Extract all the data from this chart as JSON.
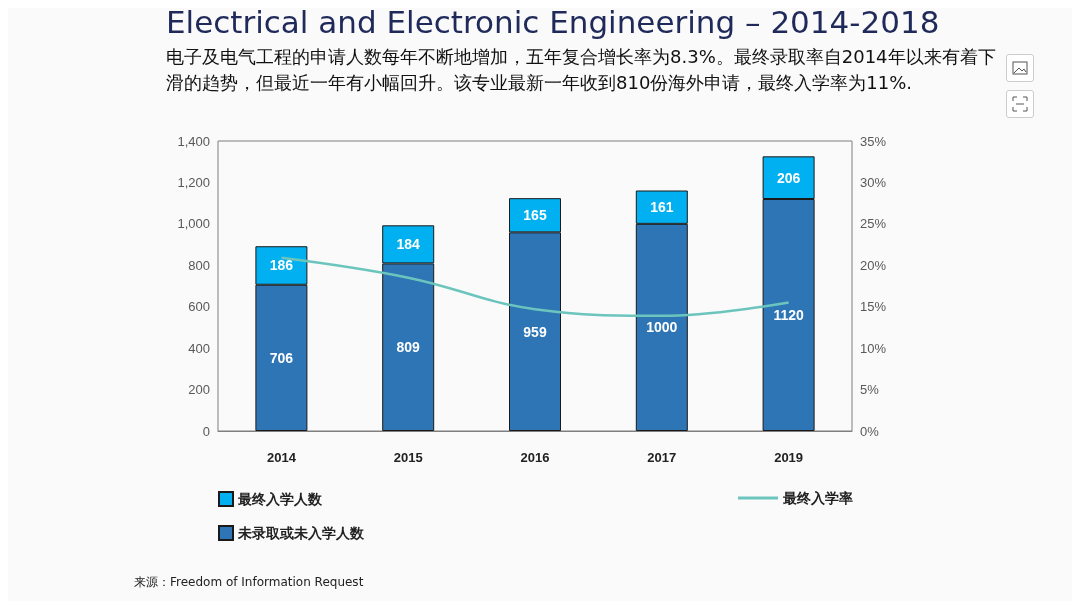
{
  "chart_data": {
    "type": "bar",
    "title": "Electrical and Electronic Engineering – 2014-2018",
    "subtitle": "电子及电气工程的申请人数每年不断地增加，五年复合增长率为8.3%。最终录取率自2014年以来有着下滑的趋势，但最近一年有小幅回升。该专业最新一年收到810份海外申请，最终入学率为11%.",
    "categories": [
      "2014",
      "2015",
      "2016",
      "2017",
      "2019"
    ],
    "stacked": true,
    "series": [
      {
        "name": "未录取或未入学人数",
        "color": "#2e75b6",
        "values": [
          706,
          809,
          959,
          1000,
          1120
        ],
        "value_labels": [
          "706",
          "809",
          "959",
          "1000",
          "1120"
        ]
      },
      {
        "name": "最终入学人数",
        "color": "#00b0f0",
        "values": [
          186,
          184,
          165,
          161,
          206
        ],
        "value_labels": [
          "186",
          "184",
          "165",
          "161",
          "206"
        ]
      },
      {
        "name": "最终入学率",
        "type": "line",
        "axis": "y2",
        "color": "#6cc5bd",
        "values": [
          20.9,
          18.5,
          14.7,
          13.9,
          15.5
        ]
      }
    ],
    "ylim": [
      0,
      1400
    ],
    "yticks": [
      0,
      {
        "value": 200,
        "label": "200"
      },
      {
        "value": 400,
        "label": "400"
      },
      {
        "value": 600,
        "label": "600"
      },
      {
        "value": 800,
        "label": "800"
      },
      {
        "value": 1000,
        "label": "1,000"
      },
      {
        "value": 1200,
        "label": "1,200"
      },
      {
        "value": 1400,
        "label": "1,400"
      }
    ],
    "y2lim": [
      0,
      35
    ],
    "y2ticks": [
      {
        "value": 0,
        "label": "0%"
      },
      {
        "value": 5,
        "label": "5%"
      },
      {
        "value": 10,
        "label": "10%"
      },
      {
        "value": 15,
        "label": "15%"
      },
      {
        "value": 20,
        "label": "20%"
      },
      {
        "value": 25,
        "label": "25%"
      },
      {
        "value": 30,
        "label": "30%"
      },
      {
        "value": 35,
        "label": "35%"
      }
    ],
    "grid": false,
    "legend": "bottom",
    "marker": "none",
    "annotations": [
      "来源：Freedom of Information Request"
    ]
  }
}
